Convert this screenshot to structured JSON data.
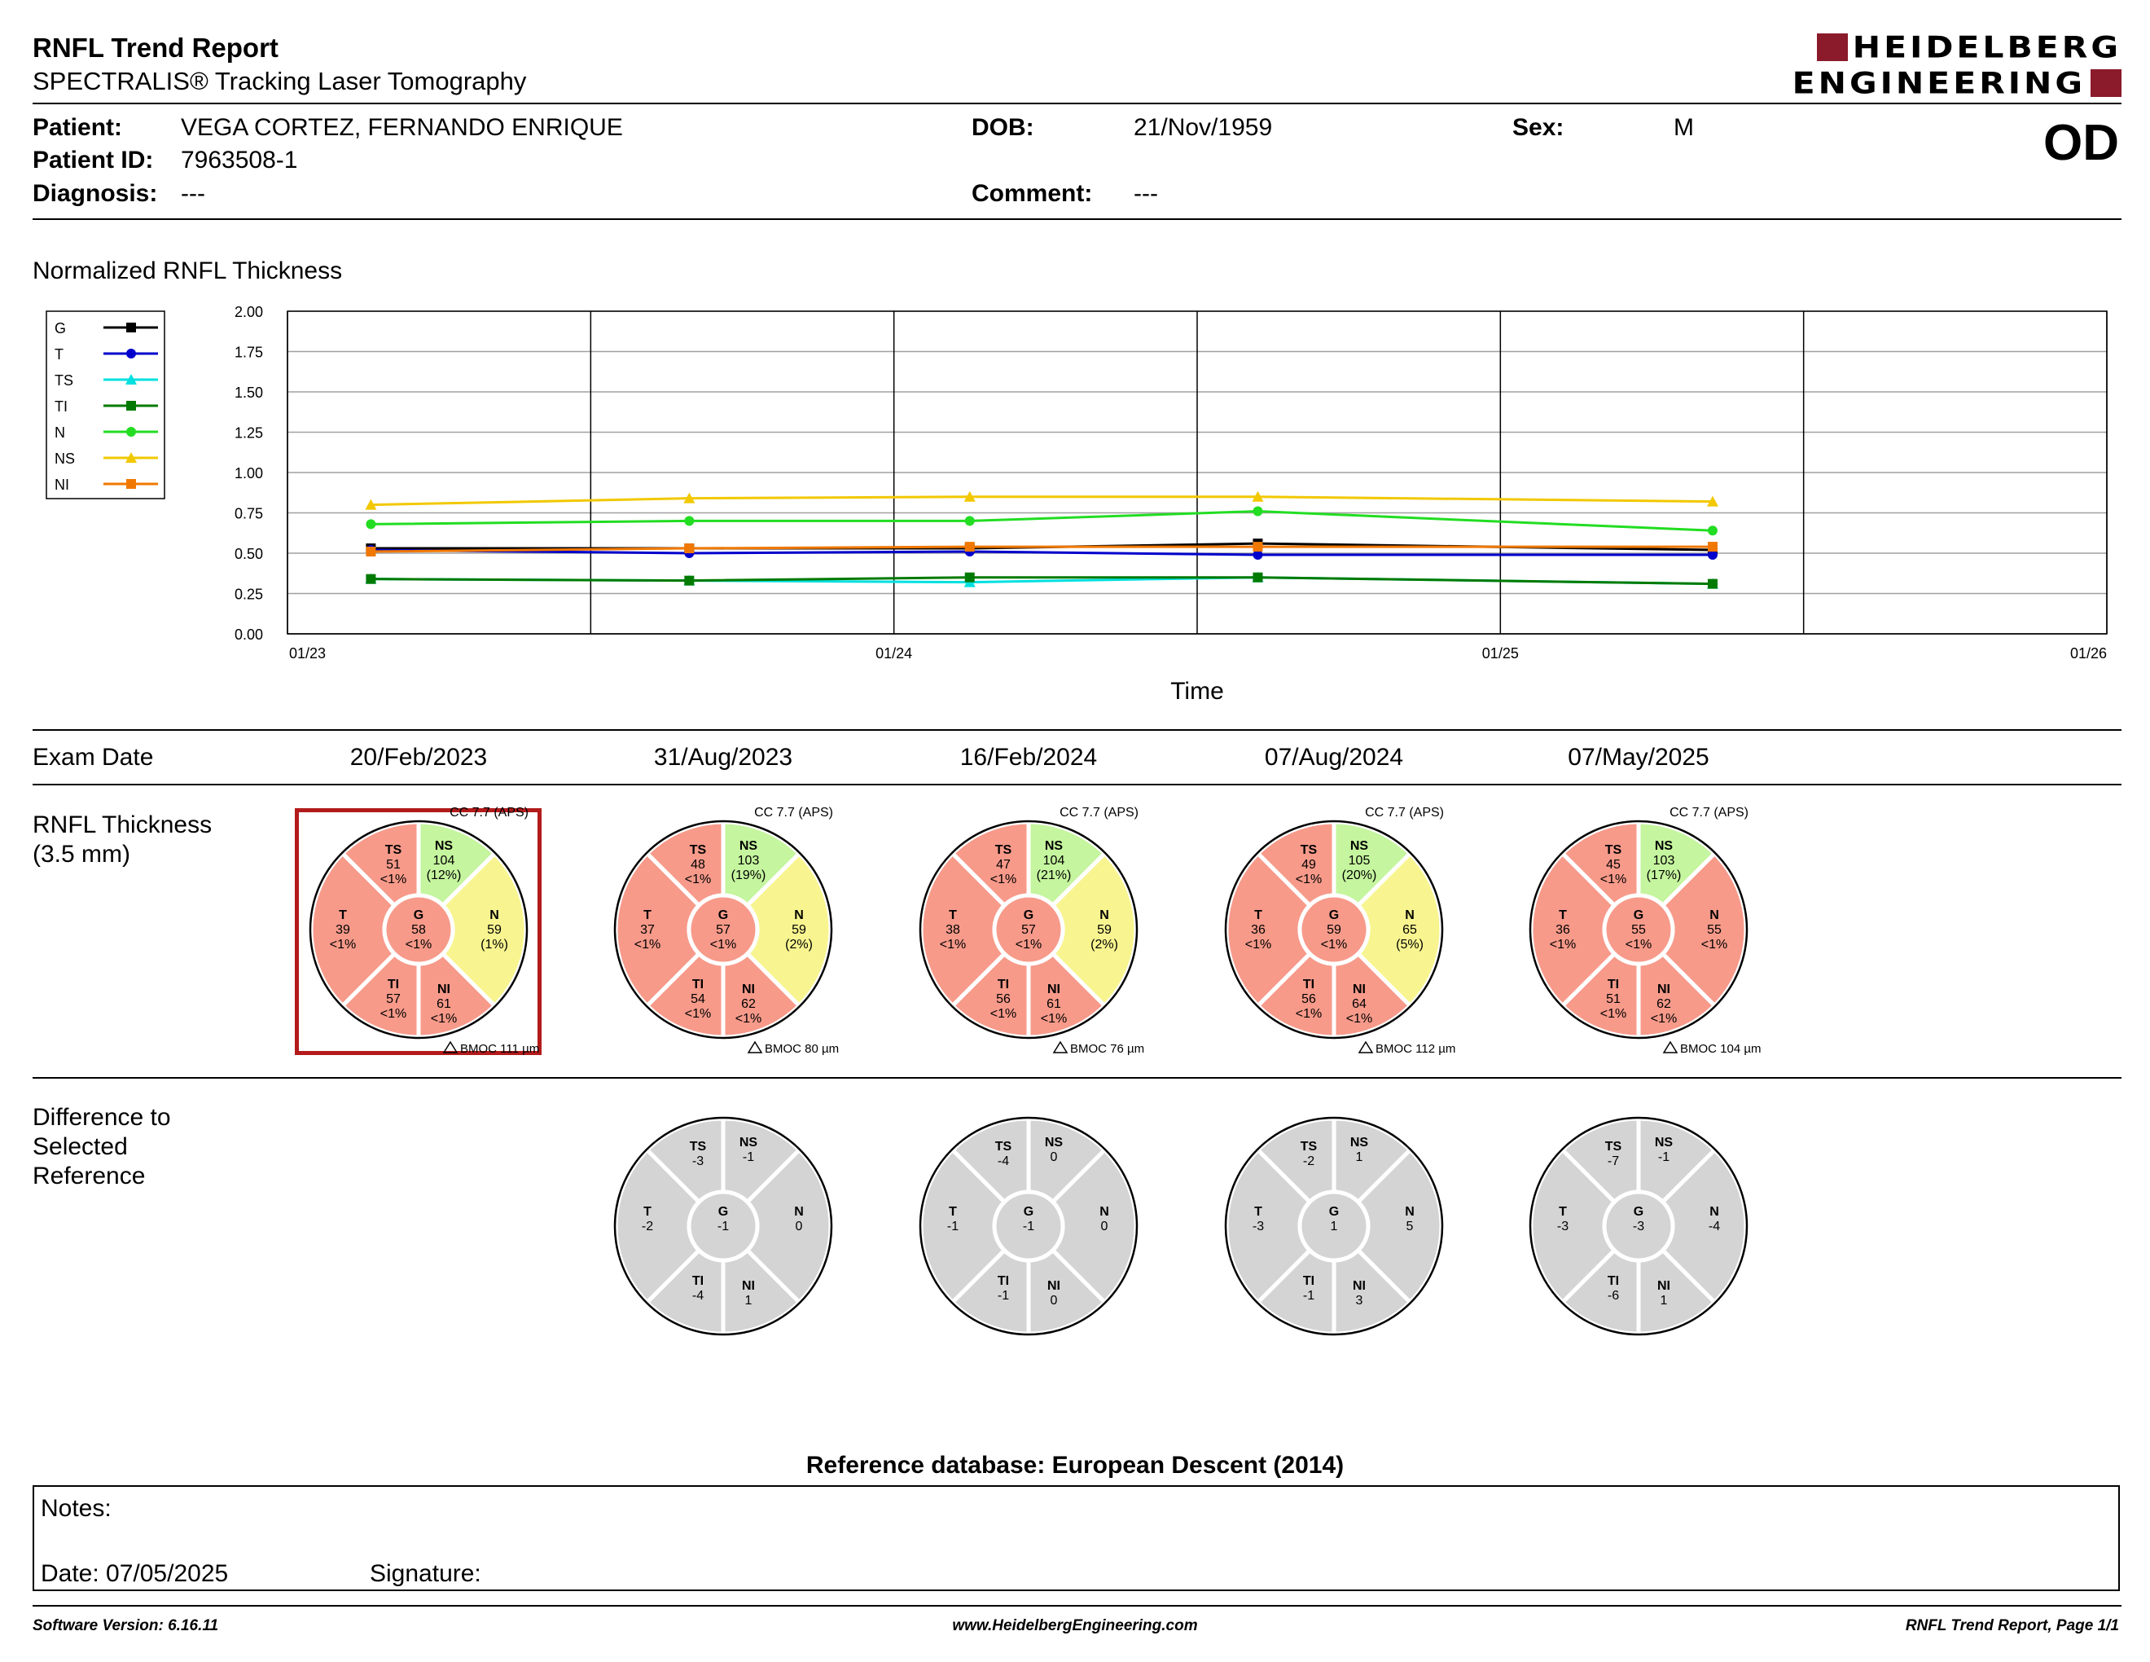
{
  "header": {
    "title": "RNFL Trend Report",
    "subtitle": "SPECTRALIS® Tracking Laser Tomography",
    "logo_line1": "HEIDELBERG",
    "logo_line2": "ENGINEERING",
    "logo_color": "#8b1a2b",
    "eye": "OD"
  },
  "patient": {
    "patient_label": "Patient:",
    "patient_value": "VEGA CORTEZ, FERNANDO ENRIQUE",
    "id_label": "Patient ID:",
    "id_value": "7963508-1",
    "diagnosis_label": "Diagnosis:",
    "diagnosis_value": "---",
    "dob_label": "DOB:",
    "dob_value": "21/Nov/1959",
    "comment_label": "Comment:",
    "comment_value": "---",
    "sex_label": "Sex:",
    "sex_value": "M"
  },
  "chart_title": "Normalized RNFL Thickness",
  "chart_data": {
    "type": "line",
    "xlabel": "Time",
    "ylabel": "",
    "ylim": [
      0,
      2
    ],
    "yticks": [
      "0.00",
      "0.25",
      "0.50",
      "0.75",
      "1.00",
      "1.25",
      "1.50",
      "1.75",
      "2.00"
    ],
    "xticks": [
      "01/23",
      "01/24",
      "01/25",
      "01/26"
    ],
    "x_dates": [
      "20/Feb/2023",
      "31/Aug/2023",
      "16/Feb/2024",
      "07/Aug/2024",
      "07/May/2025"
    ],
    "x_months": [
      1.65,
      7.95,
      13.5,
      19.2,
      28.2
    ],
    "x_range_months": [
      0,
      36
    ],
    "legend_position": "left",
    "grid": true,
    "series": [
      {
        "name": "G",
        "color": "#000000",
        "marker": "square",
        "values": [
          0.53,
          0.53,
          0.53,
          0.56,
          0.52
        ]
      },
      {
        "name": "T",
        "color": "#0000cc",
        "marker": "circle",
        "values": [
          0.52,
          0.5,
          0.51,
          0.49,
          0.49
        ]
      },
      {
        "name": "TS",
        "color": "#00e0e0",
        "marker": "triangle",
        "values": [
          0.34,
          0.33,
          0.32,
          0.35,
          0.31
        ]
      },
      {
        "name": "TI",
        "color": "#007a00",
        "marker": "square",
        "values": [
          0.34,
          0.33,
          0.35,
          0.35,
          0.31
        ]
      },
      {
        "name": "N",
        "color": "#22dd22",
        "marker": "circle",
        "values": [
          0.68,
          0.7,
          0.7,
          0.76,
          0.64
        ]
      },
      {
        "name": "NS",
        "color": "#f2c800",
        "marker": "triangle",
        "values": [
          0.8,
          0.84,
          0.85,
          0.85,
          0.82
        ]
      },
      {
        "name": "NI",
        "color": "#f07800",
        "marker": "square",
        "values": [
          0.51,
          0.53,
          0.54,
          0.54,
          0.54
        ]
      }
    ]
  },
  "exam_dates_label": "Exam Date",
  "exam_dates": [
    "20/Feb/2023",
    "31/Aug/2023",
    "16/Feb/2024",
    "07/Aug/2024",
    "07/May/2025"
  ],
  "rnfl_label_1": "RNFL Thickness",
  "rnfl_label_2": "(3.5 mm)",
  "diff_label_1": "Difference to",
  "diff_label_2": "Selected",
  "diff_label_3": "Reference",
  "colors": {
    "red": "#f79a8a",
    "yellow": "#f8f590",
    "green": "#c5f59e",
    "gray": "#d4d4d4",
    "selected_frame": "#b31b1b"
  },
  "thickness_discs": [
    {
      "cc": "CC 7.7 (APS)",
      "bmoc": "BMOC 111 µm",
      "selected": true,
      "G": {
        "v": "58",
        "p": "<1%",
        "c": "red"
      },
      "T": {
        "v": "39",
        "p": "<1%",
        "c": "red"
      },
      "TS": {
        "v": "51",
        "p": "<1%",
        "c": "red"
      },
      "NS": {
        "v": "104",
        "p": "(12%)",
        "c": "green"
      },
      "N": {
        "v": "59",
        "p": "(1%)",
        "c": "yellow"
      },
      "NI": {
        "v": "61",
        "p": "<1%",
        "c": "red"
      },
      "TI": {
        "v": "57",
        "p": "<1%",
        "c": "red"
      }
    },
    {
      "cc": "CC 7.7 (APS)",
      "bmoc": "BMOC 80 µm",
      "selected": false,
      "G": {
        "v": "57",
        "p": "<1%",
        "c": "red"
      },
      "T": {
        "v": "37",
        "p": "<1%",
        "c": "red"
      },
      "TS": {
        "v": "48",
        "p": "<1%",
        "c": "red"
      },
      "NS": {
        "v": "103",
        "p": "(19%)",
        "c": "green"
      },
      "N": {
        "v": "59",
        "p": "(2%)",
        "c": "yellow"
      },
      "NI": {
        "v": "62",
        "p": "<1%",
        "c": "red"
      },
      "TI": {
        "v": "54",
        "p": "<1%",
        "c": "red"
      }
    },
    {
      "cc": "CC 7.7 (APS)",
      "bmoc": "BMOC 76 µm",
      "selected": false,
      "G": {
        "v": "57",
        "p": "<1%",
        "c": "red"
      },
      "T": {
        "v": "38",
        "p": "<1%",
        "c": "red"
      },
      "TS": {
        "v": "47",
        "p": "<1%",
        "c": "red"
      },
      "NS": {
        "v": "104",
        "p": "(21%)",
        "c": "green"
      },
      "N": {
        "v": "59",
        "p": "(2%)",
        "c": "yellow"
      },
      "NI": {
        "v": "61",
        "p": "<1%",
        "c": "red"
      },
      "TI": {
        "v": "56",
        "p": "<1%",
        "c": "red"
      }
    },
    {
      "cc": "CC 7.7 (APS)",
      "bmoc": "BMOC 112 µm",
      "selected": false,
      "G": {
        "v": "59",
        "p": "<1%",
        "c": "red"
      },
      "T": {
        "v": "36",
        "p": "<1%",
        "c": "red"
      },
      "TS": {
        "v": "49",
        "p": "<1%",
        "c": "red"
      },
      "NS": {
        "v": "105",
        "p": "(20%)",
        "c": "green"
      },
      "N": {
        "v": "65",
        "p": "(5%)",
        "c": "yellow"
      },
      "NI": {
        "v": "64",
        "p": "<1%",
        "c": "red"
      },
      "TI": {
        "v": "56",
        "p": "<1%",
        "c": "red"
      }
    },
    {
      "cc": "CC 7.7 (APS)",
      "bmoc": "BMOC 104 µm",
      "selected": false,
      "G": {
        "v": "55",
        "p": "<1%",
        "c": "red"
      },
      "T": {
        "v": "36",
        "p": "<1%",
        "c": "red"
      },
      "TS": {
        "v": "45",
        "p": "<1%",
        "c": "red"
      },
      "NS": {
        "v": "103",
        "p": "(17%)",
        "c": "green"
      },
      "N": {
        "v": "55",
        "p": "<1%",
        "c": "red"
      },
      "NI": {
        "v": "62",
        "p": "<1%",
        "c": "red"
      },
      "TI": {
        "v": "51",
        "p": "<1%",
        "c": "red"
      }
    }
  ],
  "difference_discs": [
    null,
    {
      "G": "-1",
      "T": "-2",
      "TS": "-3",
      "NS": "-1",
      "N": "0",
      "NI": "1",
      "TI": "-4"
    },
    {
      "G": "-1",
      "T": "-1",
      "TS": "-4",
      "NS": "0",
      "N": "0",
      "NI": "0",
      "TI": "-1"
    },
    {
      "G": "1",
      "T": "-3",
      "TS": "-2",
      "NS": "1",
      "N": "5",
      "NI": "3",
      "TI": "-1"
    },
    {
      "G": "-3",
      "T": "-3",
      "TS": "-7",
      "NS": "-1",
      "N": "-4",
      "NI": "1",
      "TI": "-6"
    }
  ],
  "reference_db": "Reference database: European Descent (2014)",
  "notes": {
    "notes_label": "Notes:",
    "date_label": "Date: 07/05/2025",
    "signature_label": "Signature:"
  },
  "footer": {
    "software": "Software Version: 6.16.11",
    "website": "www.HeidelbergEngineering.com",
    "page": "RNFL Trend Report, Page 1/1"
  }
}
